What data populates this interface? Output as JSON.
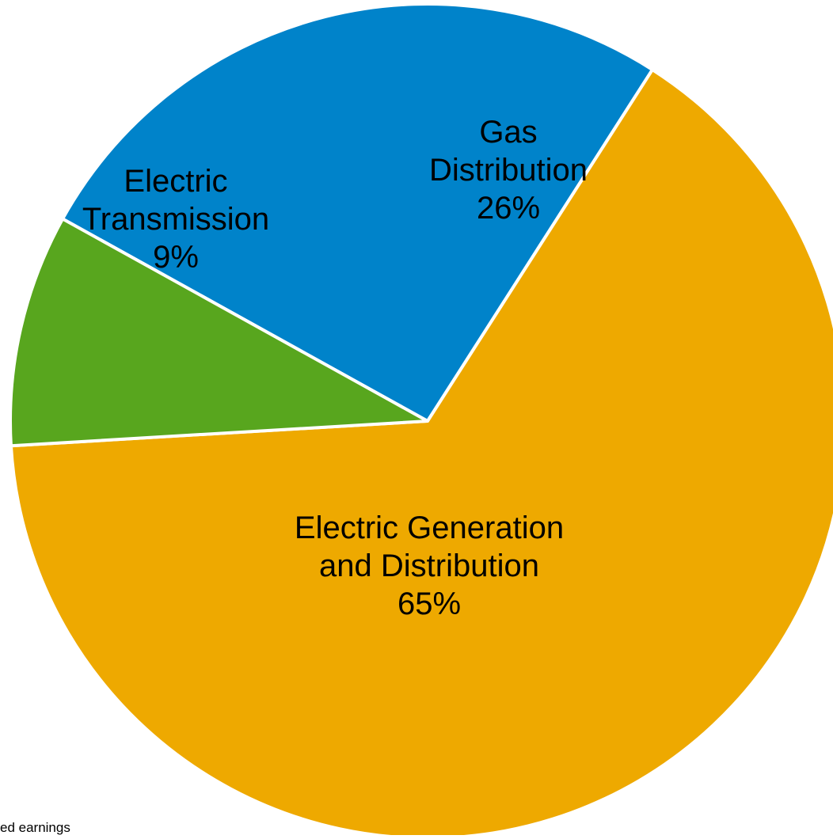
{
  "chart_data": {
    "type": "pie",
    "slices": [
      {
        "label_lines": [
          "Gas",
          "Distribution"
        ],
        "percent_label": "26%",
        "value": 26,
        "color": "#0083CA"
      },
      {
        "label_lines": [
          "Electric Generation",
          "and Distribution"
        ],
        "percent_label": "65%",
        "value": 65,
        "color": "#EEA900"
      },
      {
        "label_lines": [
          "Electric",
          "Transmission"
        ],
        "percent_label": "9%",
        "value": 9,
        "color": "#58A61E"
      }
    ],
    "slice_border_color": "#FFFFFF"
  },
  "footnote": "ed earnings"
}
